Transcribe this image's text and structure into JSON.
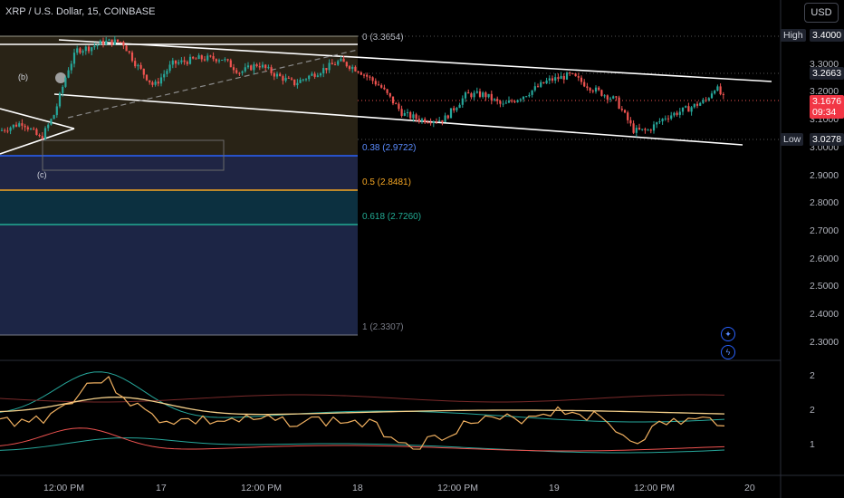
{
  "header": {
    "symbol": "XRP / U.S. Dollar, 15, COINBASE",
    "currency_button": "USD"
  },
  "price_axis": {
    "ticks": [
      "3.4000",
      "3.3000",
      "3.2000",
      "3.1000",
      "3.0000",
      "2.9000",
      "2.8000",
      "2.7000",
      "2.6000",
      "2.5000",
      "2.4000",
      "2.3000"
    ],
    "tick_values": [
      3.4,
      3.3,
      3.2,
      3.1,
      3.0,
      2.9,
      2.8,
      2.7,
      2.6,
      2.5,
      2.4,
      2.3
    ],
    "high_label": "High",
    "high_value": "3.4000",
    "last_price": "3.1676",
    "countdown": "09:34",
    "level_3_2663": "3.2663",
    "low_label": "Low",
    "low_value": "3.0278"
  },
  "fib": {
    "level_0": "0 (3.3654)",
    "level_038": "0.38 (2.9722)",
    "level_05": "0.5 (2.8481)",
    "level_0618": "0.618 (2.7260)",
    "level_1": "1 (2.3307)"
  },
  "wave_labels": {
    "b": "(b)",
    "c": "(c)"
  },
  "indicator_axis": {
    "ticks": [
      "2",
      "2",
      "1"
    ]
  },
  "time_axis": {
    "labels": [
      "12:00 PM",
      "17",
      "12:00 PM",
      "18",
      "12:00 PM",
      "19",
      "12:00 PM",
      "20"
    ]
  },
  "colors": {
    "up": "#26a69a",
    "down": "#ef5350",
    "fib_blue": "#2962ff",
    "fib_orange": "#f5a623",
    "fib_teal": "#22ab94",
    "fib_grey": "#787b86",
    "last_price_bg": "#f23645"
  },
  "icons": [
    "add-alert-icon",
    "lightning-icon"
  ]
}
